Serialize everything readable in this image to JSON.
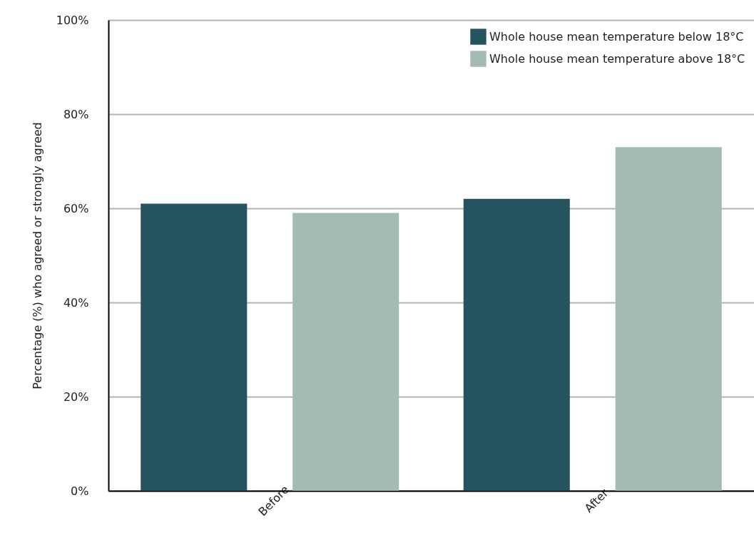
{
  "chart_data": {
    "type": "bar",
    "ylabel": "Percentage (%) who agreed or strongly agreed",
    "categories": [
      "Before",
      "After"
    ],
    "series": [
      {
        "name": "Whole house mean temperature below 18°C",
        "color": "#25535f",
        "values": [
          61,
          62
        ]
      },
      {
        "name": "Whole house mean temperature above 18°C",
        "color": "#a3bbb4",
        "values": [
          59,
          73
        ]
      }
    ],
    "ylim": [
      0,
      100
    ],
    "yticks": [
      {
        "value": 0,
        "label": "0%"
      },
      {
        "value": 20,
        "label": "20%"
      },
      {
        "value": 40,
        "label": "40%"
      },
      {
        "value": 60,
        "label": "60%"
      },
      {
        "value": 80,
        "label": "80%"
      },
      {
        "value": 100,
        "label": "100%"
      }
    ],
    "grid": "y",
    "legend": "top right"
  }
}
